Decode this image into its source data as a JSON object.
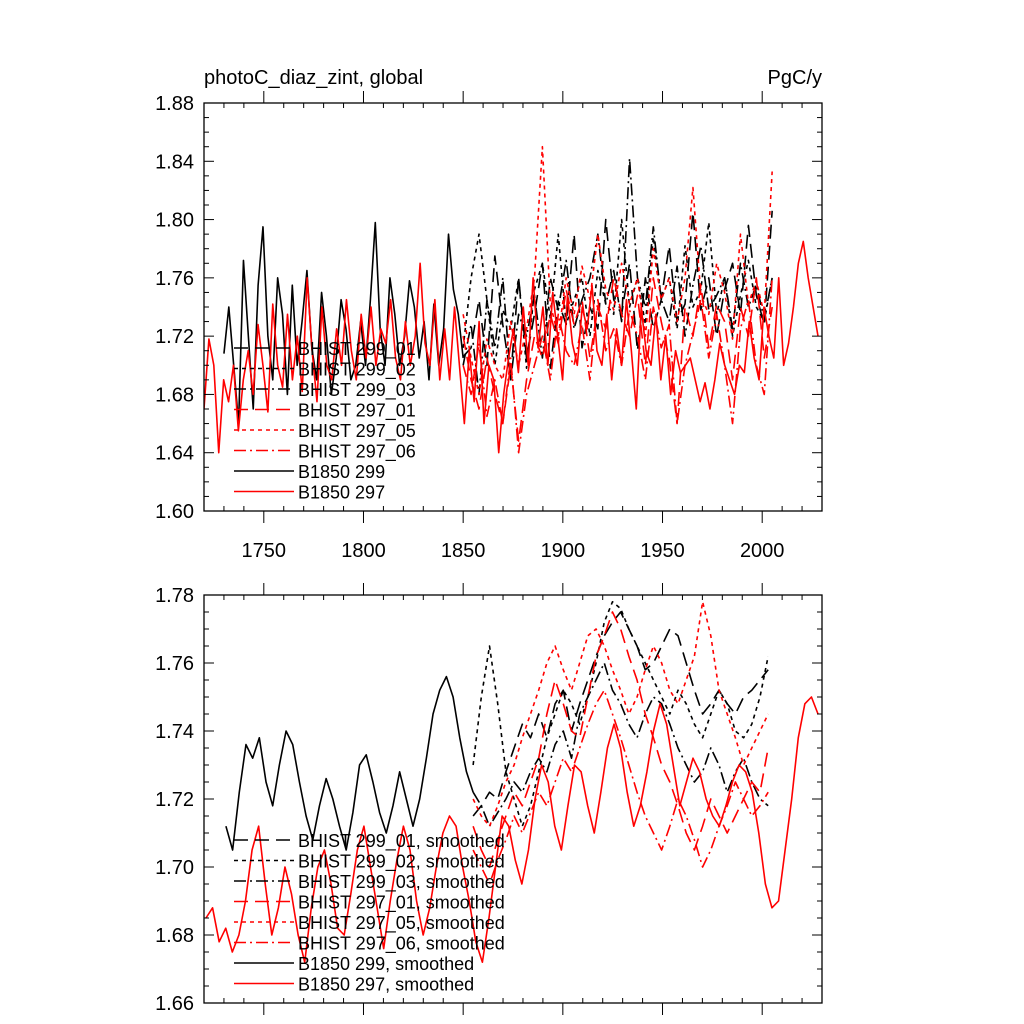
{
  "chart_data": [
    {
      "type": "line",
      "title": "photoC_diaz_zint, global",
      "units": "PgC/y",
      "xlim": [
        1720,
        2030
      ],
      "ylim": [
        1.6,
        1.88
      ],
      "x_ticks": [
        1750,
        1800,
        1850,
        1900,
        1950,
        2000
      ],
      "x_tick_labels": [
        "1750",
        "1800",
        "1850",
        "1900",
        "1950",
        "2000"
      ],
      "y_ticks": [
        1.6,
        1.64,
        1.68,
        1.72,
        1.76,
        1.8,
        1.84,
        1.88
      ],
      "y_tick_labels": [
        "1.60",
        "1.64",
        "1.68",
        "1.72",
        "1.76",
        "1.80",
        "1.84",
        "1.88"
      ],
      "legend_position": "left",
      "series": [
        {
          "name": "BHIST 299_01",
          "color": "#000000",
          "dash": "long-dash",
          "x_range": [
            1850,
            2005
          ],
          "values": [
            1.706,
            1.712,
            1.745,
            1.7,
            1.775,
            1.728,
            1.692,
            1.76,
            1.705,
            1.735,
            1.77,
            1.698,
            1.744,
            1.728,
            1.79,
            1.712,
            1.74,
            1.725,
            1.8,
            1.745,
            1.735,
            1.77,
            1.71,
            1.76,
            1.725,
            1.745,
            1.782,
            1.73,
            1.742,
            1.805,
            1.738,
            1.76,
            1.72,
            1.752,
            1.77,
            1.735,
            1.796,
            1.748,
            1.728,
            1.806
          ]
        },
        {
          "name": "BHIST 299_02",
          "color": "#000000",
          "dash": "short-dash",
          "x_range": [
            1850,
            2005
          ],
          "values": [
            1.712,
            1.76,
            1.79,
            1.745,
            1.7,
            1.738,
            1.725,
            1.76,
            1.698,
            1.752,
            1.77,
            1.732,
            1.79,
            1.728,
            1.745,
            1.76,
            1.72,
            1.765,
            1.742,
            1.735,
            1.8,
            1.74,
            1.76,
            1.728,
            1.788,
            1.745,
            1.76,
            1.725,
            1.782,
            1.74,
            1.752,
            1.798,
            1.735,
            1.76,
            1.72,
            1.748,
            1.772,
            1.74,
            1.73,
            1.76
          ]
        },
        {
          "name": "BHIST 299_03",
          "color": "#000000",
          "dash": "dash-dot",
          "x_range": [
            1850,
            2005
          ],
          "values": [
            1.7,
            1.728,
            1.68,
            1.745,
            1.712,
            1.76,
            1.69,
            1.735,
            1.72,
            1.748,
            1.705,
            1.76,
            1.738,
            1.772,
            1.725,
            1.745,
            1.76,
            1.79,
            1.742,
            1.765,
            1.73,
            1.842,
            1.76,
            1.74,
            1.795,
            1.745,
            1.73,
            1.768,
            1.72,
            1.755,
            1.782,
            1.738,
            1.748,
            1.76,
            1.725,
            1.77,
            1.74,
            1.755,
            1.732,
            1.76
          ]
        },
        {
          "name": "BHIST 297_01",
          "color": "#ff0000",
          "dash": "long-dash",
          "x_range": [
            1850,
            2005
          ],
          "values": [
            1.72,
            1.69,
            1.67,
            1.705,
            1.68,
            1.66,
            1.7,
            1.648,
            1.69,
            1.72,
            1.705,
            1.735,
            1.715,
            1.752,
            1.728,
            1.745,
            1.705,
            1.74,
            1.725,
            1.76,
            1.735,
            1.72,
            1.748,
            1.7,
            1.76,
            1.73,
            1.705,
            1.66,
            1.74,
            1.72,
            1.755,
            1.712,
            1.742,
            1.73,
            1.69,
            1.74,
            1.72,
            1.76,
            1.705,
            1.74
          ]
        },
        {
          "name": "BHIST 297_05",
          "color": "#ff0000",
          "dash": "short-dash",
          "x_range": [
            1850,
            2005
          ],
          "values": [
            1.735,
            1.705,
            1.68,
            1.718,
            1.7,
            1.69,
            1.73,
            1.7,
            1.725,
            1.76,
            1.85,
            1.742,
            1.72,
            1.76,
            1.735,
            1.768,
            1.745,
            1.79,
            1.752,
            1.738,
            1.77,
            1.742,
            1.76,
            1.72,
            1.78,
            1.745,
            1.76,
            1.73,
            1.76,
            1.822,
            1.748,
            1.735,
            1.77,
            1.75,
            1.718,
            1.79,
            1.742,
            1.758,
            1.735,
            1.833
          ]
        },
        {
          "name": "BHIST 297_06",
          "color": "#ff0000",
          "dash": "dash-dot",
          "x_range": [
            1850,
            2005
          ],
          "values": [
            1.7,
            1.68,
            1.715,
            1.665,
            1.69,
            1.66,
            1.705,
            1.64,
            1.68,
            1.7,
            1.72,
            1.69,
            1.735,
            1.71,
            1.7,
            1.728,
            1.69,
            1.745,
            1.71,
            1.725,
            1.7,
            1.738,
            1.72,
            1.69,
            1.74,
            1.712,
            1.728,
            1.66,
            1.7,
            1.722,
            1.745,
            1.705,
            1.735,
            1.7,
            1.66,
            1.725,
            1.745,
            1.7,
            1.68,
            1.76
          ]
        },
        {
          "name": "B1850 299",
          "color": "#000000",
          "dash": "solid",
          "x_range": [
            1730,
            1850
          ],
          "values": [
            1.708,
            1.74,
            1.7,
            1.66,
            1.772,
            1.72,
            1.67,
            1.755,
            1.795,
            1.72,
            1.69,
            1.76,
            1.735,
            1.68,
            1.755,
            1.7,
            1.73,
            1.765,
            1.712,
            1.69,
            1.75,
            1.72,
            1.68,
            1.705,
            1.745,
            1.725,
            1.69,
            1.7,
            1.73,
            1.7,
            1.745,
            1.798,
            1.725,
            1.7,
            1.76,
            1.735,
            1.7,
            1.72,
            1.758,
            1.74,
            1.705,
            1.73,
            1.69,
            1.742,
            1.7,
            1.725,
            1.79,
            1.752,
            1.735,
            1.705
          ]
        },
        {
          "name": "B1850 297",
          "color": "#ff0000",
          "dash": "solid",
          "x_range": [
            1720,
            2028
          ],
          "values": [
            1.67,
            1.718,
            1.7,
            1.64,
            1.69,
            1.675,
            1.7,
            1.655,
            1.69,
            1.71,
            1.68,
            1.728,
            1.7,
            1.668,
            1.742,
            1.7,
            1.685,
            1.735,
            1.69,
            1.72,
            1.682,
            1.76,
            1.71,
            1.675,
            1.74,
            1.7,
            1.69,
            1.725,
            1.7,
            1.745,
            1.71,
            1.69,
            1.735,
            1.705,
            1.74,
            1.7,
            1.725,
            1.715,
            1.745,
            1.705,
            1.69,
            1.73,
            1.7,
            1.72,
            1.77,
            1.715,
            1.7,
            1.745,
            1.69,
            1.725,
            1.69,
            1.74,
            1.7,
            1.66,
            1.71,
            1.675,
            1.73,
            1.66,
            1.7,
            1.69,
            1.64,
            1.68,
            1.705,
            1.725,
            1.695,
            1.74,
            1.7,
            1.76,
            1.712,
            1.74,
            1.7,
            1.75,
            1.72,
            1.69,
            1.748,
            1.715,
            1.7,
            1.74,
            1.725,
            1.755,
            1.71,
            1.7,
            1.735,
            1.69,
            1.725,
            1.7,
            1.745,
            1.71,
            1.67,
            1.74,
            1.71,
            1.7,
            1.735,
            1.69,
            1.72,
            1.68,
            1.71,
            1.695,
            1.7,
            1.705,
            1.69,
            1.675,
            1.688,
            1.67,
            1.69,
            1.715,
            1.7,
            1.69,
            1.68,
            1.7,
            1.695,
            1.73,
            1.705,
            1.69,
            1.74,
            1.72,
            1.705,
            1.76,
            1.7,
            1.715,
            1.74,
            1.77,
            1.785,
            1.76,
            1.74,
            1.72
          ]
        }
      ]
    },
    {
      "type": "line",
      "xlim": [
        1720,
        2030
      ],
      "ylim": [
        1.66,
        1.78
      ],
      "x_ticks": [
        1750,
        1800,
        1850,
        1900,
        1950,
        2000
      ],
      "y_ticks": [
        1.66,
        1.68,
        1.7,
        1.72,
        1.74,
        1.76,
        1.78
      ],
      "y_tick_labels": [
        "1.66",
        "1.68",
        "1.70",
        "1.72",
        "1.74",
        "1.76",
        "1.78"
      ],
      "legend_position": "bottom-left",
      "series": [
        {
          "name": "BHIST 299_01, smoothed",
          "color": "#000000",
          "dash": "long-dash",
          "x_range": [
            1855,
            2003
          ],
          "values": [
            1.715,
            1.718,
            1.722,
            1.72,
            1.728,
            1.735,
            1.742,
            1.738,
            1.745,
            1.738,
            1.748,
            1.752,
            1.74,
            1.748,
            1.755,
            1.762,
            1.768,
            1.772,
            1.775,
            1.77,
            1.765,
            1.758,
            1.76,
            1.765,
            1.77,
            1.768,
            1.76,
            1.752,
            1.745,
            1.748,
            1.752,
            1.748,
            1.745,
            1.75,
            1.752,
            1.755,
            1.758
          ]
        },
        {
          "name": "BHIST 299_02, smoothed",
          "color": "#000000",
          "dash": "short-dash",
          "x_range": [
            1855,
            2003
          ],
          "values": [
            1.73,
            1.75,
            1.765,
            1.748,
            1.728,
            1.72,
            1.712,
            1.718,
            1.728,
            1.738,
            1.745,
            1.752,
            1.748,
            1.742,
            1.75,
            1.76,
            1.772,
            1.778,
            1.776,
            1.77,
            1.765,
            1.76,
            1.755,
            1.75,
            1.745,
            1.752,
            1.748,
            1.742,
            1.738,
            1.745,
            1.752,
            1.748,
            1.74,
            1.738,
            1.742,
            1.75,
            1.762
          ]
        },
        {
          "name": "BHIST 299_03, smoothed",
          "color": "#000000",
          "dash": "dash-dot",
          "x_range": [
            1855,
            2003
          ],
          "values": [
            1.722,
            1.718,
            1.712,
            1.716,
            1.72,
            1.725,
            1.722,
            1.728,
            1.732,
            1.728,
            1.736,
            1.74,
            1.732,
            1.745,
            1.75,
            1.755,
            1.76,
            1.752,
            1.748,
            1.742,
            1.738,
            1.745,
            1.75,
            1.748,
            1.742,
            1.735,
            1.73,
            1.725,
            1.728,
            1.735,
            1.73,
            1.722,
            1.728,
            1.732,
            1.725,
            1.72,
            1.718
          ]
        },
        {
          "name": "BHIST 297_01, smoothed",
          "color": "#ff0000",
          "dash": "long-dash",
          "x_range": [
            1855,
            2003
          ],
          "values": [
            1.712,
            1.705,
            1.7,
            1.708,
            1.715,
            1.722,
            1.718,
            1.725,
            1.732,
            1.745,
            1.755,
            1.748,
            1.74,
            1.738,
            1.75,
            1.762,
            1.768,
            1.775,
            1.77,
            1.762,
            1.755,
            1.745,
            1.738,
            1.73,
            1.725,
            1.718,
            1.71,
            1.705,
            1.712,
            1.72,
            1.715,
            1.71,
            1.715,
            1.72,
            1.725,
            1.722,
            1.735
          ]
        },
        {
          "name": "BHIST 297_05, smoothed",
          "color": "#ff0000",
          "dash": "short-dash",
          "x_range": [
            1855,
            2003
          ],
          "values": [
            1.72,
            1.715,
            1.712,
            1.718,
            1.725,
            1.73,
            1.738,
            1.745,
            1.752,
            1.76,
            1.765,
            1.758,
            1.752,
            1.76,
            1.768,
            1.77,
            1.765,
            1.758,
            1.752,
            1.745,
            1.75,
            1.758,
            1.765,
            1.76,
            1.752,
            1.748,
            1.755,
            1.762,
            1.778,
            1.768,
            1.752,
            1.745,
            1.738,
            1.73,
            1.735,
            1.74,
            1.745
          ]
        },
        {
          "name": "BHIST 297_06, smoothed",
          "color": "#ff0000",
          "dash": "dash-dot",
          "x_range": [
            1855,
            2003
          ],
          "values": [
            1.705,
            1.7,
            1.695,
            1.702,
            1.708,
            1.715,
            1.71,
            1.716,
            1.722,
            1.718,
            1.725,
            1.732,
            1.728,
            1.735,
            1.742,
            1.748,
            1.752,
            1.745,
            1.738,
            1.73,
            1.722,
            1.715,
            1.71,
            1.705,
            1.712,
            1.72,
            1.715,
            1.708,
            1.7,
            1.705,
            1.712,
            1.718,
            1.725,
            1.72,
            1.715,
            1.718,
            1.722
          ]
        },
        {
          "name": "B1850 299, smoothed",
          "color": "#000000",
          "dash": "solid",
          "x_range": [
            1731,
            1855
          ],
          "values": [
            1.712,
            1.705,
            1.722,
            1.736,
            1.732,
            1.738,
            1.725,
            1.718,
            1.73,
            1.74,
            1.736,
            1.725,
            1.715,
            1.708,
            1.718,
            1.726,
            1.72,
            1.712,
            1.705,
            1.716,
            1.73,
            1.733,
            1.725,
            1.716,
            1.71,
            1.718,
            1.728,
            1.72,
            1.712,
            1.72,
            1.732,
            1.745,
            1.752,
            1.756,
            1.75,
            1.738,
            1.728,
            1.722
          ]
        },
        {
          "name": "B1850 297, smoothed",
          "color": "#ff0000",
          "dash": "solid",
          "x_range": [
            1721,
            2028
          ],
          "values": [
            1.685,
            1.688,
            1.678,
            1.682,
            1.675,
            1.68,
            1.69,
            1.705,
            1.712,
            1.695,
            1.68,
            1.688,
            1.7,
            1.692,
            1.68,
            1.672,
            1.688,
            1.7,
            1.705,
            1.695,
            1.682,
            1.68,
            1.692,
            1.705,
            1.712,
            1.7,
            1.688,
            1.676,
            1.69,
            1.702,
            1.712,
            1.705,
            1.69,
            1.68,
            1.688,
            1.7,
            1.71,
            1.715,
            1.712,
            1.7,
            1.69,
            1.678,
            1.672,
            1.685,
            1.7,
            1.715,
            1.712,
            1.702,
            1.695,
            1.705,
            1.72,
            1.73,
            1.725,
            1.712,
            1.705,
            1.718,
            1.73,
            1.728,
            1.718,
            1.71,
            1.722,
            1.735,
            1.742,
            1.735,
            1.722,
            1.712,
            1.718,
            1.728,
            1.74,
            1.748,
            1.742,
            1.73,
            1.718,
            1.725,
            1.732,
            1.728,
            1.72,
            1.715,
            1.712,
            1.718,
            1.725,
            1.73,
            1.728,
            1.722,
            1.71,
            1.695,
            1.688,
            1.69,
            1.705,
            1.72,
            1.738,
            1.748,
            1.75,
            1.745
          ]
        }
      ]
    }
  ]
}
